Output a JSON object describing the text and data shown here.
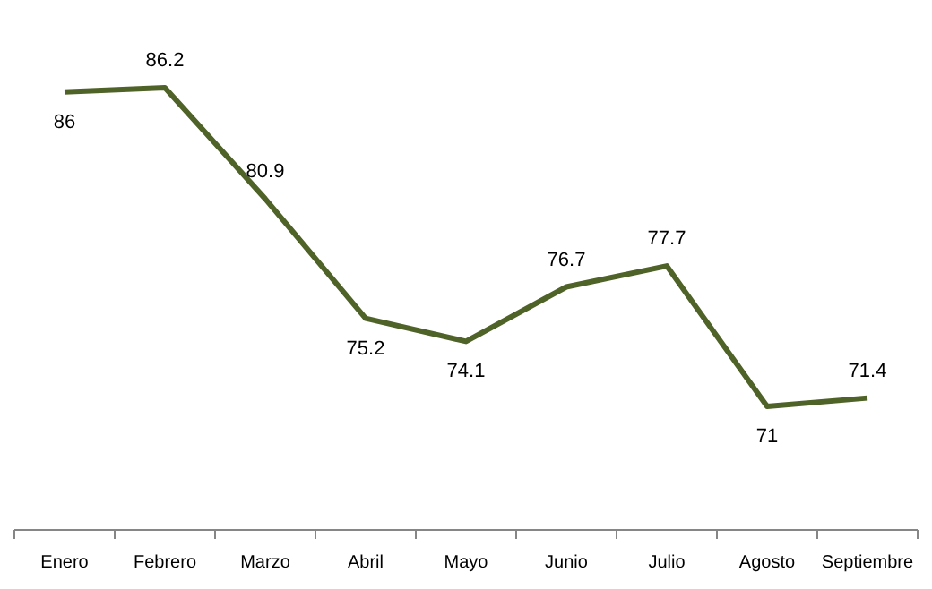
{
  "chart_data": {
    "type": "line",
    "categories": [
      "Enero",
      "Febrero",
      "Marzo",
      "Abril",
      "Mayo",
      "Junio",
      "Julio",
      "Agosto",
      "Septiembre"
    ],
    "series": [
      {
        "color": "#4f6228",
        "values": [
          86,
          86.2,
          80.9,
          75.2,
          74.1,
          76.7,
          77.7,
          71,
          71.4
        ]
      }
    ],
    "tick_labels": "x",
    "data_labels": true,
    "line_style": "solid"
  }
}
